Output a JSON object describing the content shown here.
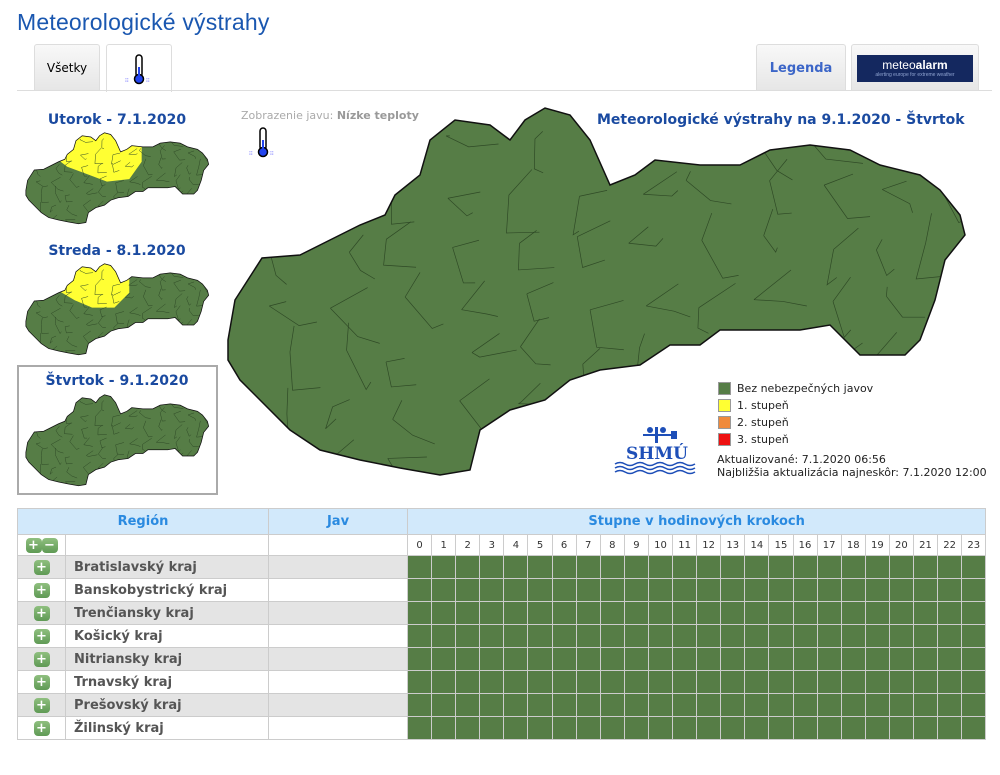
{
  "header": {
    "title": "Meteorologické výstrahy"
  },
  "tabs": [
    {
      "label": "Všetky"
    },
    {
      "icon": "thermometer-cold-icon"
    },
    {
      "label": "Legenda"
    },
    {
      "logo": "meteoalarm",
      "logo_text": "meteoalarm",
      "logo_tagline": "alerting europe for extreme weather"
    }
  ],
  "days": [
    {
      "label": "Utorok - 7.1.2020",
      "has_warning": true
    },
    {
      "label": "Streda - 8.1.2020",
      "has_warning": true
    },
    {
      "label": "Štvrtok - 9.1.2020",
      "has_warning": false,
      "selected": true
    }
  ],
  "phenomenon": {
    "label": "Zobrazenie javu:",
    "value": "Nízke teploty",
    "icon": "thermometer-cold-icon"
  },
  "map": {
    "title": "Meteorologické výstrahy na 9.1.2020 - Štvrtok"
  },
  "legend": [
    {
      "label": "Bez nebezpečných javov",
      "color": "#567d46"
    },
    {
      "label": "1. stupeň",
      "color": "#ffff33"
    },
    {
      "label": "2. stupeň",
      "color": "#f08a3c"
    },
    {
      "label": "3. stupeň",
      "color": "#ee1111"
    }
  ],
  "logo": "SHMÚ",
  "update": {
    "updated": "Aktualizované: 7.1.2020 06:56",
    "next": "Najbližšia aktualizácia najneskôr: 7.1.2020 12:00"
  },
  "table": {
    "headers": {
      "region": "Región",
      "phenomenon": "Jav",
      "hours": "Stupne v hodinových krokoch"
    },
    "hours": [
      "0",
      "1",
      "2",
      "3",
      "4",
      "5",
      "6",
      "7",
      "8",
      "9",
      "10",
      "11",
      "12",
      "13",
      "14",
      "15",
      "16",
      "17",
      "18",
      "19",
      "20",
      "21",
      "22",
      "23"
    ],
    "regions": [
      {
        "name": "Bratislavský kraj",
        "jav": "",
        "level": 0
      },
      {
        "name": "Banskobystrický kraj",
        "jav": "",
        "level": 0
      },
      {
        "name": "Trenčiansky kraj",
        "jav": "",
        "level": 0
      },
      {
        "name": "Košický kraj",
        "jav": "",
        "level": 0
      },
      {
        "name": "Nitriansky kraj",
        "jav": "",
        "level": 0
      },
      {
        "name": "Trnavský kraj",
        "jav": "",
        "level": 0
      },
      {
        "name": "Prešovský kraj",
        "jav": "",
        "level": 0
      },
      {
        "name": "Žilinský kraj",
        "jav": "",
        "level": 0
      }
    ]
  }
}
